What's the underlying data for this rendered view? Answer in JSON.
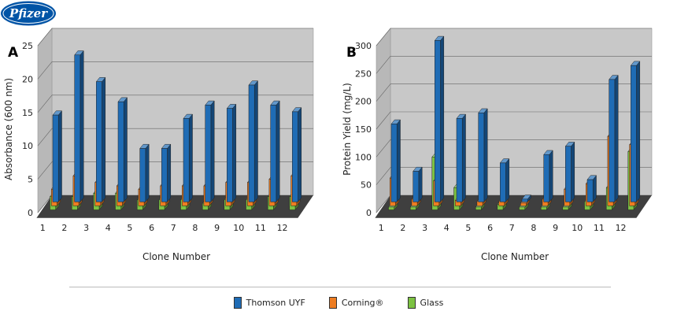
{
  "logo": {
    "text": "Pfizer",
    "color": "#0054a6"
  },
  "legend": [
    {
      "label": "Thomson UYF",
      "color": "#1f6cb5"
    },
    {
      "label": "Corning®",
      "color": "#ee7d22"
    },
    {
      "label": "Glass",
      "color": "#7cc242"
    }
  ],
  "colors": {
    "wall": "#c8c8c8",
    "floor": "#3f3f3f"
  },
  "chart_data": [
    {
      "panel_label": "A",
      "type": "bar",
      "categories": [
        "1",
        "2",
        "3",
        "4",
        "5",
        "6",
        "7",
        "8",
        "9",
        "10",
        "11",
        "12"
      ],
      "xlabel": "Clone Number",
      "ylabel": "Absorbance (600 nm)",
      "ylim": [
        0,
        25
      ],
      "yticks": [
        0,
        5,
        10,
        15,
        20,
        25
      ],
      "grid": true,
      "series": [
        {
          "name": "Thomson UYF",
          "values": [
            13,
            22,
            18,
            15,
            8,
            8,
            12.5,
            14.5,
            14,
            17.5,
            14.5,
            13.5
          ]
        },
        {
          "name": "Corning®",
          "values": [
            2.5,
            4.5,
            3.5,
            3,
            2.5,
            3,
            3,
            3,
            3.5,
            3.5,
            4,
            4.5
          ]
        },
        {
          "name": "Glass",
          "values": [
            2,
            2,
            2.5,
            2.5,
            1.5,
            1.5,
            1.5,
            1,
            1.5,
            1.5,
            2,
            2
          ]
        }
      ]
    },
    {
      "panel_label": "B",
      "type": "bar",
      "categories": [
        "1",
        "2",
        "3",
        "4",
        "5",
        "6",
        "7",
        "8",
        "9",
        "10",
        "11",
        "12"
      ],
      "xlabel": "Clone Number",
      "ylabel": "Protein Yield (mg/L)",
      "ylim": [
        0,
        300
      ],
      "yticks": [
        0,
        50,
        100,
        150,
        200,
        250,
        300
      ],
      "grid": true,
      "series": [
        {
          "name": "Thomson UYF",
          "values": [
            140,
            55,
            290,
            150,
            160,
            70,
            5,
            85,
            100,
            40,
            220,
            245
          ]
        },
        {
          "name": "Corning®",
          "values": [
            50,
            12,
            45,
            10,
            8,
            8,
            5,
            12,
            30,
            40,
            125,
            110
          ]
        },
        {
          "name": "Glass",
          "values": [
            5,
            5,
            95,
            40,
            5,
            10,
            5,
            5,
            5,
            15,
            40,
            105
          ]
        }
      ]
    }
  ]
}
